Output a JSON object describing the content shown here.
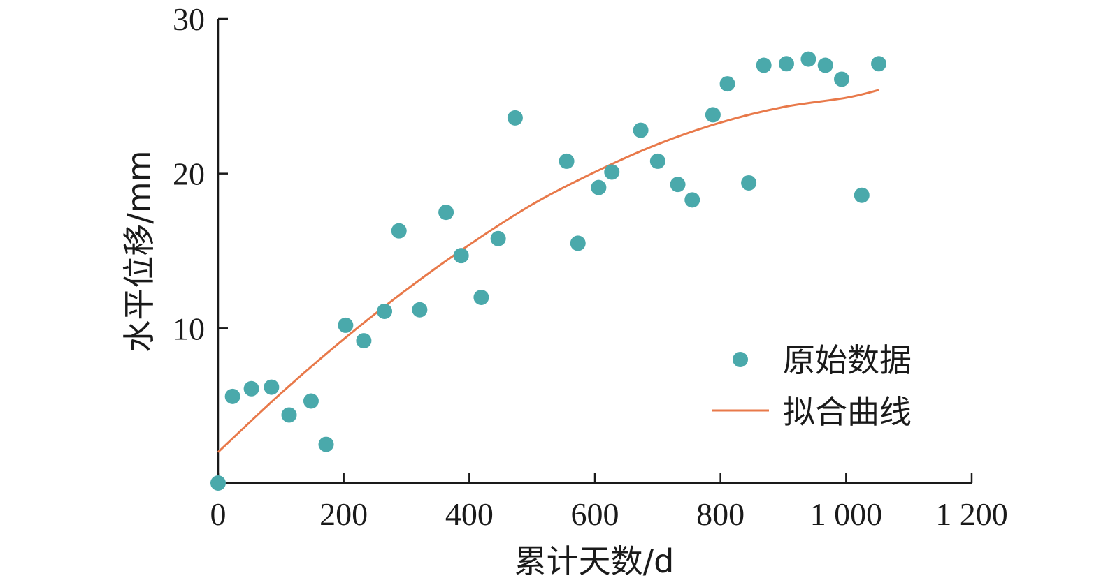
{
  "chart_data": {
    "type": "scatter",
    "xlabel": "累计天数/d",
    "ylabel": "水平位移/mm",
    "xlim": [
      0,
      1200
    ],
    "ylim": [
      0,
      30
    ],
    "x_ticks": [
      0,
      200,
      400,
      600,
      800,
      1000,
      1200
    ],
    "x_tick_labels": [
      "0",
      "200",
      "400",
      "600",
      "800",
      "1 000",
      "1 200"
    ],
    "y_ticks": [
      10,
      20,
      30
    ],
    "y_tick_labels": [
      "10",
      "20",
      "30"
    ],
    "grid": false,
    "legend_position": "bottom-right",
    "colors": {
      "points": "#4aa9ab",
      "fit": "#e8794a",
      "axis": "#1a1a1a"
    },
    "series": [
      {
        "name": "原始数据",
        "kind": "scatter",
        "points": [
          [
            0,
            0.0
          ],
          [
            23,
            5.6
          ],
          [
            53,
            6.1
          ],
          [
            85,
            6.2
          ],
          [
            113,
            4.4
          ],
          [
            148,
            5.3
          ],
          [
            172,
            2.5
          ],
          [
            203,
            10.2
          ],
          [
            232,
            9.2
          ],
          [
            265,
            11.1
          ],
          [
            288,
            16.3
          ],
          [
            321,
            11.2
          ],
          [
            363,
            17.5
          ],
          [
            387,
            14.7
          ],
          [
            419,
            12.0
          ],
          [
            446,
            15.8
          ],
          [
            473,
            23.6
          ],
          [
            555,
            20.8
          ],
          [
            573,
            15.5
          ],
          [
            606,
            19.1
          ],
          [
            627,
            20.1
          ],
          [
            673,
            22.8
          ],
          [
            700,
            20.8
          ],
          [
            732,
            19.3
          ],
          [
            755,
            18.3
          ],
          [
            788,
            23.8
          ],
          [
            811,
            25.8
          ],
          [
            845,
            19.4
          ],
          [
            869,
            27.0
          ],
          [
            905,
            27.1
          ],
          [
            940,
            27.4
          ],
          [
            967,
            27.0
          ],
          [
            993,
            26.1
          ],
          [
            1025,
            18.6
          ],
          [
            1052,
            27.1
          ]
        ]
      },
      {
        "name": "拟合曲线",
        "kind": "line",
        "points": [
          [
            0,
            2.0
          ],
          [
            100,
            5.8
          ],
          [
            200,
            9.3
          ],
          [
            300,
            12.5
          ],
          [
            400,
            15.4
          ],
          [
            500,
            18.0
          ],
          [
            600,
            20.1
          ],
          [
            700,
            21.9
          ],
          [
            800,
            23.3
          ],
          [
            900,
            24.3
          ],
          [
            1000,
            24.9
          ],
          [
            1052,
            25.4
          ]
        ]
      }
    ]
  }
}
